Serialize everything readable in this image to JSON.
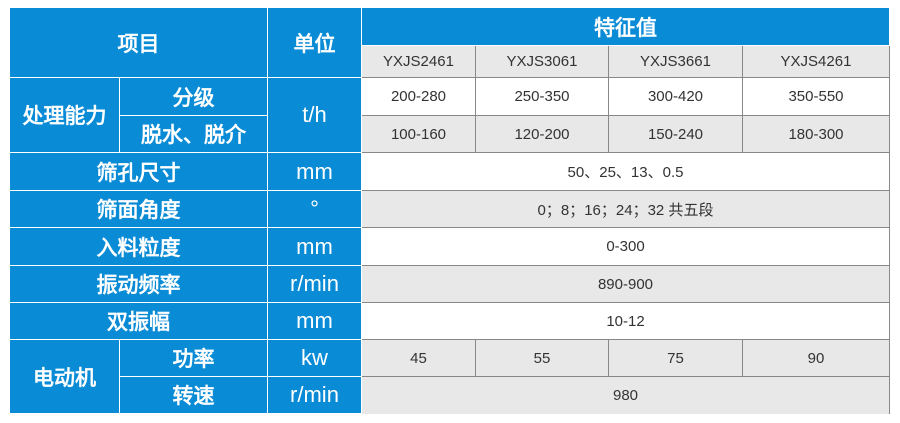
{
  "header": {
    "item": "项目",
    "unit": "单位",
    "feature": "特征值",
    "models": [
      "YXJS2461",
      "YXJS3061",
      "YXJS3661",
      "YXJS4261"
    ]
  },
  "capacity": {
    "label": "处理能力",
    "unit": "t/h",
    "grading": {
      "label": "分级",
      "values": [
        "200-280",
        "250-350",
        "300-420",
        "350-550"
      ]
    },
    "dewatering": {
      "label": "脱水、脱介",
      "values": [
        "100-160",
        "120-200",
        "150-240",
        "180-300"
      ]
    }
  },
  "rows": [
    {
      "label": "筛孔尺寸",
      "unit": "mm",
      "value": "50、25、13、0.5"
    },
    {
      "label": "筛面角度",
      "unit": "°",
      "value": "0；8；16；24；32 共五段"
    },
    {
      "label": "入料粒度",
      "unit": "mm",
      "value": "0-300"
    },
    {
      "label": "振动频率",
      "unit": "r/min",
      "value": "890-900"
    },
    {
      "label": "双振幅",
      "unit": "mm",
      "value": "10-12"
    }
  ],
  "motor": {
    "label": "电动机",
    "power": {
      "label": "功率",
      "unit": "kw",
      "values": [
        "45",
        "55",
        "75",
        "90"
      ]
    },
    "speed": {
      "label": "转速",
      "unit": "r/min",
      "value": "980"
    }
  },
  "colors": {
    "header_blue": "#0a8bd6",
    "row_gray": "#e8e8e8"
  }
}
